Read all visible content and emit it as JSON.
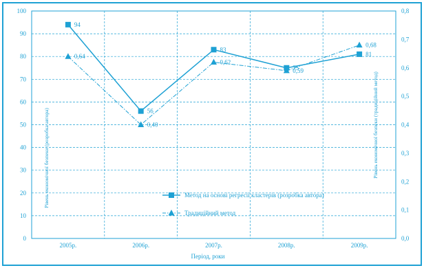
{
  "chart_data": {
    "type": "line",
    "title": "",
    "xlabel": "Період, роки",
    "ylabel_left": "Рівень економічної безпеки (розробка автора)",
    "ylabel_right": "Рівень економічної безпеки (традиційний метод)",
    "categories": [
      "2005р.",
      "2006р.",
      "2007р.",
      "2008р.",
      "2009р."
    ],
    "y_left_range": [
      0,
      100
    ],
    "y_left_ticks": [
      "0",
      "10",
      "20",
      "30",
      "40",
      "50",
      "60",
      "70",
      "80",
      "90",
      "100"
    ],
    "y_right_range": [
      0,
      0.8
    ],
    "y_right_ticks": [
      "0,0",
      "0,1",
      "0,2",
      "0,3",
      "0,4",
      "0,5",
      "0,6",
      "0,7",
      "0,8"
    ],
    "grid": true,
    "legend_position": "bottom-center",
    "series": [
      {
        "name": "Метод на основі регресії кластерів (розробка автора)",
        "axis": "left",
        "marker": "square",
        "line": "solid",
        "values": [
          94,
          56,
          83,
          75,
          81
        ],
        "labels": [
          "94",
          "56",
          "83",
          "75",
          "81"
        ]
      },
      {
        "name": "Традиційний метод",
        "axis": "right",
        "marker": "triangle",
        "line": "dash-dot",
        "values": [
          0.64,
          0.4,
          0.62,
          0.59,
          0.68
        ],
        "labels": [
          "0,64",
          "0,40",
          "0,62",
          "0,59",
          "0,68"
        ]
      }
    ],
    "colors": {
      "primary": "#1ea1d4",
      "border": "#1ea1d4"
    }
  }
}
